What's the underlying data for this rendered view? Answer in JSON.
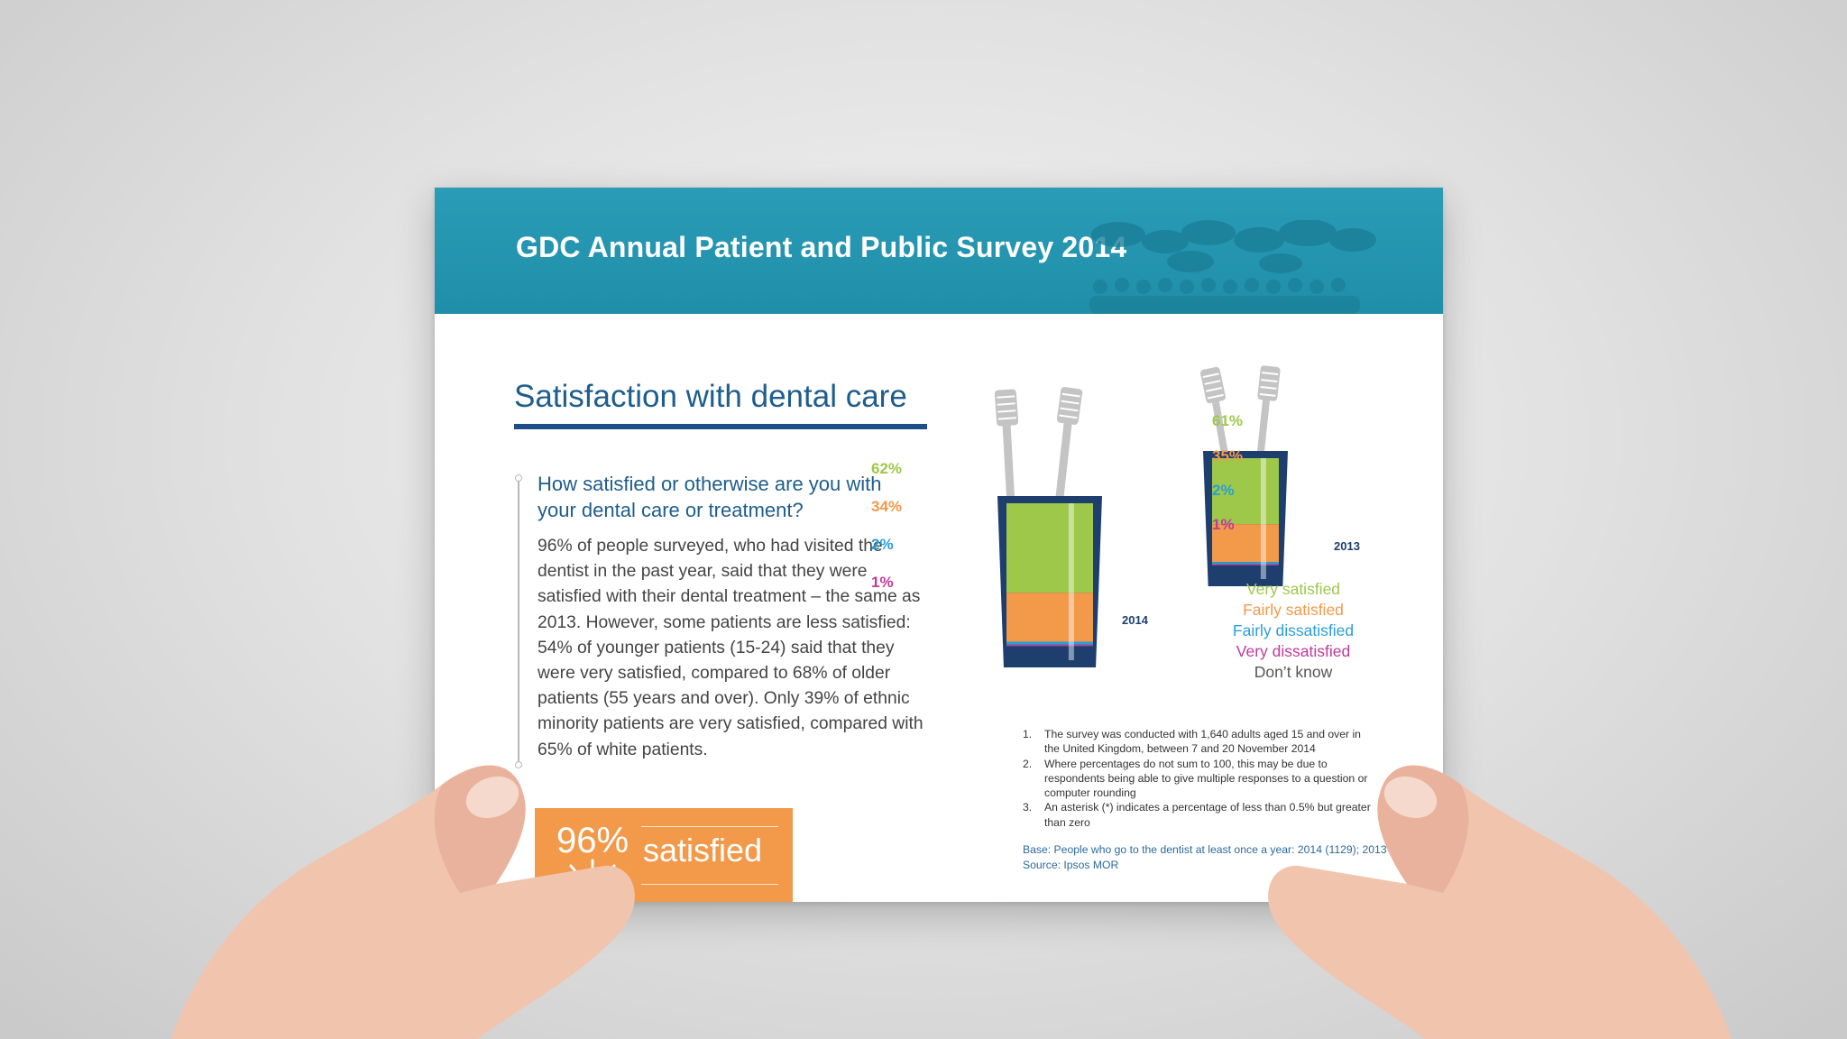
{
  "header": {
    "title": "GDC Annual Patient and Public Survey 2014"
  },
  "section": {
    "title": "Satisfaction with dental care",
    "question": "How satisfied or otherwise are you with your dental care or treatment?",
    "body_lines": [
      "96% of people surveyed, who had visited the",
      "dentist in the past year, said that they were",
      "satisfied with their dental treatment – the same as",
      "2013. However, some patients are less satisfied:",
      "54% of younger patients (15-24) said that they",
      "were very satisfied, compared to 68% of older",
      "patients (55 years and over). Only 39% of ethnic",
      "minority patients are very satisfied, compared with",
      "65% of white patients."
    ]
  },
  "badge": {
    "percent": "96%",
    "label": "satisfied"
  },
  "chart_data": {
    "type": "bar",
    "categories": [
      "2014",
      "2013"
    ],
    "series": [
      {
        "name": "Very satisfied",
        "values": [
          62,
          61
        ],
        "labels": [
          "62%",
          "61%"
        ]
      },
      {
        "name": "Fairly satisfied",
        "values": [
          34,
          35
        ],
        "labels": [
          "34%",
          "35%"
        ]
      },
      {
        "name": "Fairly dissatisfied",
        "values": [
          2,
          2
        ],
        "labels": [
          "2%",
          "2%"
        ]
      },
      {
        "name": "Very dissatisfied",
        "values": [
          1,
          1
        ],
        "labels": [
          "1%",
          "1%"
        ]
      }
    ],
    "legend": [
      "Very satisfied",
      "Fairly satisfied",
      "Fairly dissatisfied",
      "Very dissatisfied",
      "Don’t know"
    ],
    "stacked": true,
    "ylim": [
      0,
      100
    ]
  },
  "colors": {
    "very_satisfied": "#9dc84a",
    "fairly_satisfied": "#f2994a",
    "fairly_dissatisfied": "#2a9fd6",
    "very_dissatisfied": "#c2399a",
    "dont_know": "#555555",
    "header": "#1f8ea9",
    "title_blue": "#1e5d8c",
    "glass_frame": "#1e3f6e"
  },
  "notes": [
    {
      "num": "1.",
      "lines": [
        "The survey was conducted with 1,640 adults aged 15 and over in",
        "the United Kingdom, between 7 and 20 November 2014"
      ]
    },
    {
      "num": "2.",
      "lines": [
        "Where percentages do not sum to 100, this may be due to",
        "respondents being able to give multiple responses to a question or",
        "computer rounding"
      ]
    },
    {
      "num": "3.",
      "lines": [
        "An asterisk (*) indicates a percentage of less than 0.5% but greater",
        "than zero"
      ]
    }
  ],
  "base_lines": [
    "Base: People who go to the dentist at least once a year: 2014 (1129); 2013 (",
    "Source: Ipsos MOR"
  ],
  "icons": {
    "smile": "smile-icon",
    "toothbrush": "toothbrush-icon",
    "crowd": "speech-bubbles-crowd-icon"
  }
}
